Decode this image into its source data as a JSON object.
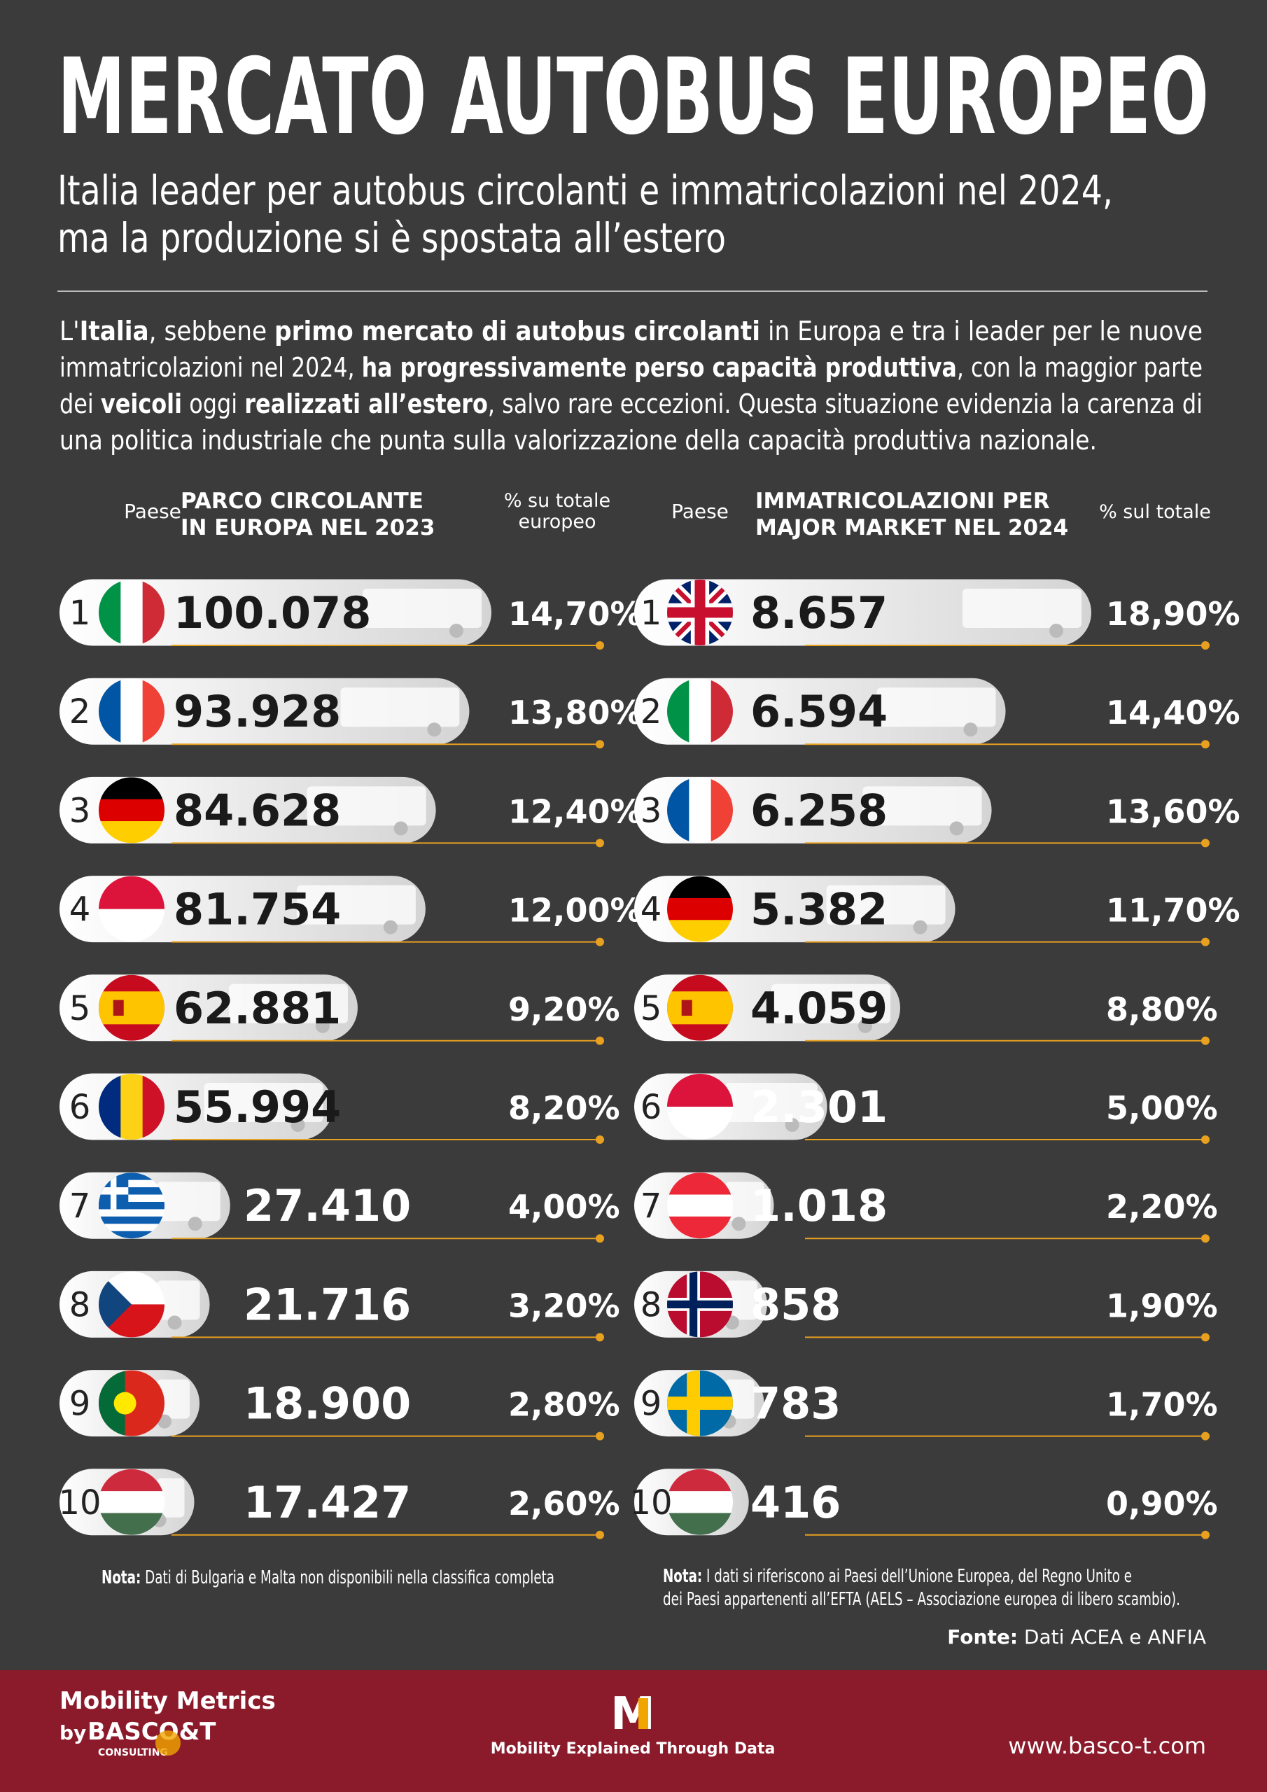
{
  "title": "MERCATO AUTOBUS EUROPEO",
  "subtitle": [
    "Italia leader per autobus circolanti e immatricolazioni nel 2024,",
    "ma la produzione si è spostata all’estero"
  ],
  "intro": [
    [
      {
        "text": "L'"
      },
      {
        "text": "Italia",
        "bold": true
      },
      {
        "text": ", sebbene "
      },
      {
        "text": "primo mercato di autobus circolanti",
        "bold": true
      },
      {
        "text": " in Europa e tra i leader per le nuove"
      }
    ],
    [
      {
        "text": "immatricolazioni nel 2024, "
      },
      {
        "text": "ha progressivamente perso capacità produttiva",
        "bold": true
      },
      {
        "text": ", con la maggior parte"
      }
    ],
    [
      {
        "text": "dei "
      },
      {
        "text": "veicoli",
        "bold": true
      },
      {
        "text": " oggi "
      },
      {
        "text": "realizzati all’estero",
        "bold": true
      },
      {
        "text": ", salvo rare eccezioni. Questa situazione evidenzia la carenza di"
      }
    ],
    [
      {
        "text": "una politica industriale che punta sulla valorizzazione della capacità produttiva nazionale."
      }
    ]
  ],
  "chart_data": [
    {
      "type": "bar",
      "header": {
        "rank": "Paese",
        "values": [
          "PARCO CIRCOLANTE",
          "IN EUROPA NEL 2023"
        ],
        "share": [
          "% su totale",
          "europeo"
        ]
      },
      "categories": [
        "1",
        "2",
        "3",
        "4",
        "5",
        "6",
        "7",
        "8",
        "9",
        "10"
      ],
      "values": [
        100078,
        93928,
        84628,
        81754,
        62881,
        55994,
        27410,
        21716,
        18900,
        17427
      ],
      "value_labels": [
        "100.078",
        "93.928",
        "84.628",
        "81.754",
        "62.881",
        "55.994",
        "27.410",
        "21.716",
        "18.900",
        "17.427"
      ],
      "share_labels": [
        "14,70%",
        "13,80%",
        "12,40%",
        "12,00%",
        "9,20%",
        "8,20%",
        "4,00%",
        "3,20%",
        "2,80%",
        "2,60%"
      ],
      "color": "#e8e8e8",
      "line_color": "#e8a020"
    },
    {
      "type": "bar",
      "header": {
        "rank": "Paese",
        "values": [
          "IMMATRICOLAZIONI PER",
          "MAJOR MARKET NEL 2024"
        ],
        "share": [
          "% sul totale"
        ]
      },
      "categories": [
        "1",
        "2",
        "3",
        "4",
        "5",
        "6",
        "7",
        "8",
        "9",
        "10"
      ],
      "values": [
        8657,
        6594,
        6258,
        5382,
        4059,
        2301,
        1018,
        858,
        783,
        416
      ],
      "value_labels": [
        "8.657",
        "6.594",
        "6.258",
        "5.382",
        "4.059",
        "2.301",
        "1.018",
        "858",
        "783",
        "416"
      ],
      "share_labels": [
        "18,90%",
        "14,40%",
        "13,60%",
        "11,70%",
        "8,80%",
        "5,00%",
        "2,20%",
        "1,90%",
        "1,70%",
        "0,90%"
      ],
      "color": "#e8e8e8",
      "line_color": "#e8a020"
    }
  ],
  "notes": {
    "left": [
      [
        {
          "text": "Nota:",
          "bold": true
        },
        {
          "text": " Dati di Bulgaria e Malta non disponibili nella classifica completa"
        }
      ]
    ],
    "right": [
      [
        {
          "text": "Nota:",
          "bold": true
        },
        {
          "text": " I dati si riferiscono ai Paesi dell’Unione Europea, del Regno Unito e"
        }
      ],
      [
        {
          "text": "dei Paesi appartenenti all’EFTA (AELS – Associazione europea di libero scambio)."
        }
      ]
    ],
    "source": [
      [
        {
          "text": "Fonte:",
          "bold": true
        },
        {
          "text": " Dati ACEA e ANFIA"
        }
      ]
    ]
  },
  "footer": {
    "brand": "Mobility Metrics",
    "by": "by",
    "company": "BASCO&T",
    "company_sub": "CONSULTING",
    "logo": "M",
    "tagline": "Mobility Explained Through Data",
    "url": "www.basco-t.com"
  }
}
